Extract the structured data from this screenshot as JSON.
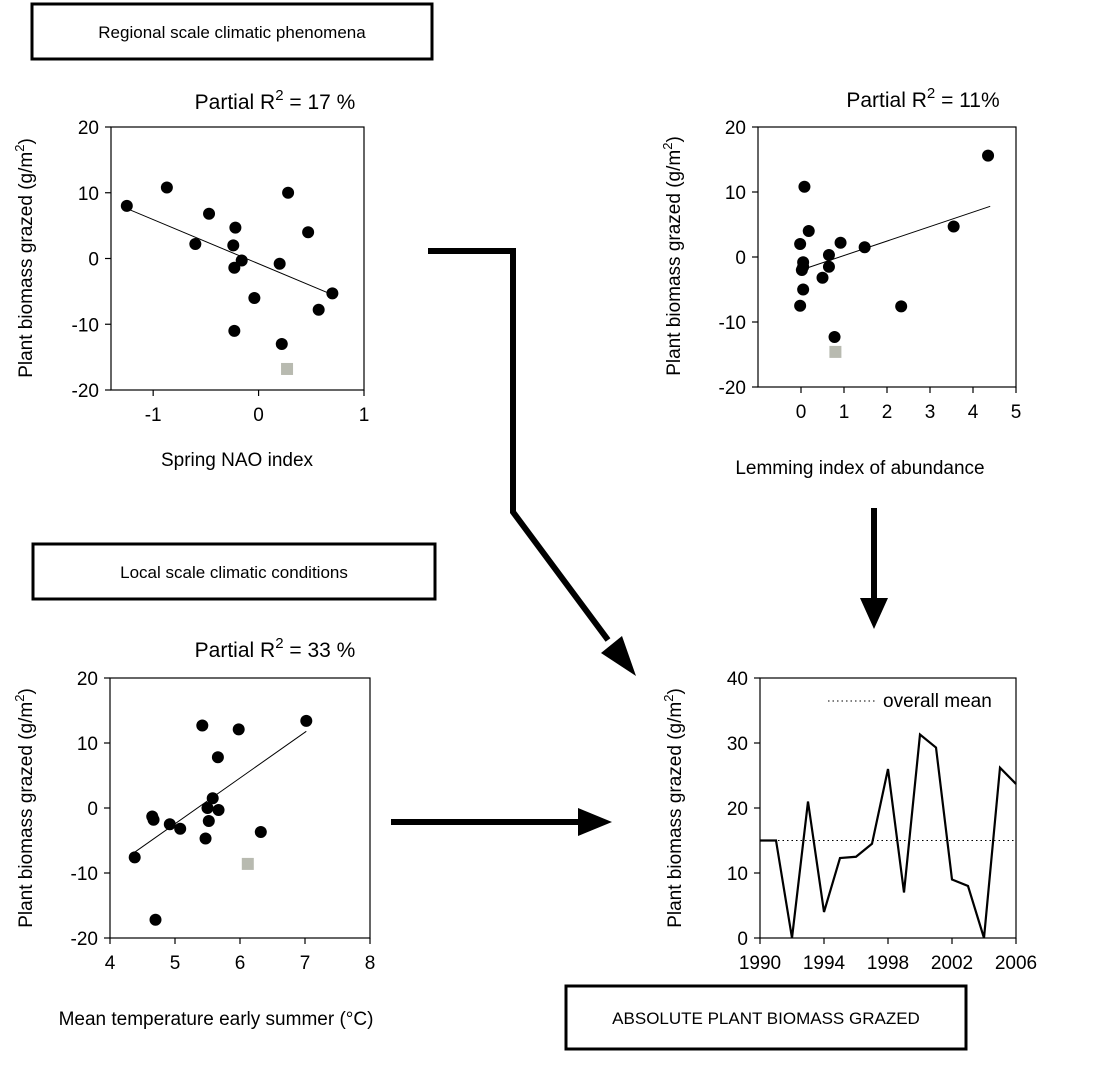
{
  "boxes": {
    "regional": "Regional scale climatic phenomena",
    "local": "Local scale climatic conditions",
    "absolute": "ABSOLUTE PLANT BIOMASS GRAZED"
  },
  "chart_data": [
    {
      "id": "nao",
      "type": "scatter",
      "title_prefix": "Partial R",
      "title_sup": "2",
      "title_suffix": " =  17 %",
      "xlabel": "Spring NAO index",
      "ylabel_prefix": "Plant biomass grazed (g/m",
      "ylabel_sup": "2",
      "ylabel_suffix": ")",
      "xlim": [
        -1.4,
        1
      ],
      "ylim": [
        -20,
        20
      ],
      "xticks": [
        -1,
        0,
        1
      ],
      "yticks": [
        20,
        10,
        0,
        -10,
        -20
      ],
      "x": [
        -1.25,
        -0.87,
        -0.6,
        -0.47,
        -0.24,
        -0.22,
        -0.23,
        -0.16,
        -0.23,
        -0.04,
        0.2,
        0.28,
        0.47,
        0.22,
        0.57,
        0.7
      ],
      "y": [
        8,
        10.8,
        2.2,
        6.8,
        2,
        4.7,
        -1.4,
        -0.3,
        -11,
        -6,
        -0.8,
        10,
        4,
        -13,
        -7.8,
        -5.3
      ],
      "outlier": {
        "x": 0.27,
        "y": -16.8
      },
      "fit": {
        "x": [
          -1.25,
          0.7
        ],
        "y": [
          7.6,
          -5.5
        ]
      }
    },
    {
      "id": "lemming",
      "type": "scatter",
      "title_prefix": "Partial R",
      "title_sup": "2",
      "title_suffix": " =  11%",
      "xlabel": "Lemming index of abundance",
      "ylabel_prefix": "Plant biomass grazed (g/m",
      "ylabel_sup": "2",
      "ylabel_suffix": ")",
      "xlim": [
        -1,
        5
      ],
      "ylim": [
        -20,
        20
      ],
      "xticks": [
        0,
        1,
        2,
        3,
        4,
        5
      ],
      "yticks": [
        20,
        10,
        0,
        -10,
        -20
      ],
      "x": [
        0.08,
        0.18,
        -0.02,
        0.05,
        0.05,
        0.02,
        0.05,
        -0.02,
        0.5,
        0.65,
        0.92,
        0.65,
        1.48,
        0.78,
        2.33,
        3.55,
        4.35
      ],
      "y": [
        10.8,
        4,
        2,
        -0.8,
        -1.5,
        -2,
        -5,
        -7.5,
        -3.2,
        0.3,
        2.2,
        -1.5,
        1.5,
        -12.3,
        -7.6,
        4.7,
        15.6
      ],
      "outlier": {
        "x": 0.8,
        "y": -14.6
      },
      "fit": {
        "x": [
          0,
          4.4
        ],
        "y": [
          -2,
          7.8
        ]
      }
    },
    {
      "id": "temperature",
      "type": "scatter",
      "title_prefix": "Partial R",
      "title_sup": "2",
      "title_suffix": " =  33 %",
      "xlabel": "Mean temperature early summer (°C)",
      "ylabel_prefix": "Plant biomass grazed (g/m",
      "ylabel_sup": "2",
      "ylabel_suffix": ")",
      "xlim": [
        4,
        8
      ],
      "ylim": [
        -20,
        20
      ],
      "xticks": [
        4,
        5,
        6,
        7,
        8
      ],
      "yticks": [
        20,
        10,
        0,
        -10,
        -20
      ],
      "x": [
        4.38,
        4.65,
        4.67,
        4.7,
        4.92,
        5.08,
        5.42,
        5.47,
        5.5,
        5.52,
        5.58,
        5.66,
        5.67,
        5.98,
        6.32,
        7.02
      ],
      "y": [
        -7.6,
        -1.3,
        -1.8,
        -17.2,
        -2.5,
        -3.2,
        12.7,
        -4.7,
        0,
        -2,
        1.5,
        7.8,
        -0.3,
        12.1,
        -3.7,
        13.4
      ],
      "outlier": {
        "x": 6.12,
        "y": -8.6
      },
      "fit": {
        "x": [
          4.38,
          7.02
        ],
        "y": [
          -6.8,
          11.8
        ]
      }
    },
    {
      "id": "absolute",
      "type": "line",
      "xlabel": "",
      "ylabel_prefix": "Plant biomass grazed (g/m",
      "ylabel_sup": "2",
      "ylabel_suffix": ")",
      "xlim": [
        1990,
        2006
      ],
      "ylim": [
        0,
        40
      ],
      "xticks": [
        1990,
        1994,
        1998,
        2002,
        2006
      ],
      "yticks": [
        40,
        30,
        20,
        10,
        0
      ],
      "x": [
        1990,
        1991,
        1992,
        1993,
        1994,
        1995,
        1996,
        1997,
        1998,
        1999,
        2000,
        2001,
        2002,
        2003,
        2004,
        2005,
        2006
      ],
      "y": [
        15,
        15,
        0,
        21,
        4,
        12.3,
        12.5,
        14.5,
        26,
        7,
        31.3,
        29.3,
        9,
        8,
        0,
        26.2,
        23.7
      ],
      "mean": 15,
      "legend": "overall mean"
    }
  ]
}
